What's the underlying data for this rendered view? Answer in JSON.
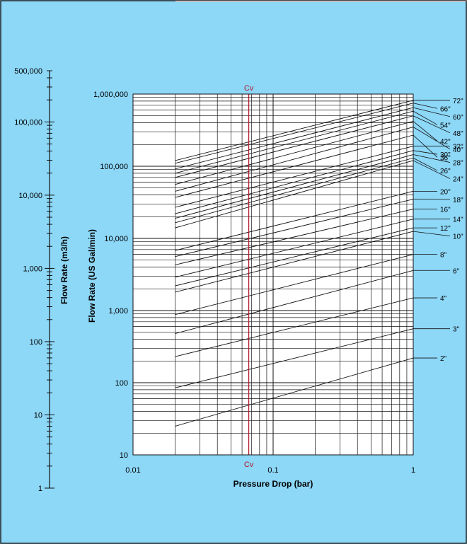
{
  "colors": {
    "background": "#8dd7f7",
    "border": "#222222",
    "grid": "#111111",
    "chart_area": "#ffffff",
    "cv_line": "#b0182a"
  },
  "chart_data": {
    "type": "line",
    "title": "",
    "xlabel": "Pressure Drop (bar)",
    "ylabel": "Flow Rate (US Gal/min)",
    "y2label": "Flow Rate (m3/h)",
    "xscale": "log",
    "yscale": "log",
    "xlim": [
      0.01,
      1
    ],
    "ylim": [
      10,
      1000000
    ],
    "x_ticks": [
      "0.01",
      "0.1",
      "1"
    ],
    "y_ticks": [
      "10",
      "100",
      "1,000",
      "10,000",
      "100,000",
      "1,000,000"
    ],
    "secondary_axis": {
      "label": "Flow Rate (m3/h)",
      "scale": "log",
      "range": [
        1,
        500000
      ],
      "ticks": [
        "1",
        "10",
        "100",
        "1,000",
        "10,000",
        "100,000",
        "500,000"
      ]
    },
    "reference_line": {
      "label": "Cv",
      "x": 0.067
    },
    "grid": true,
    "series_x_range": [
      0.02,
      1
    ],
    "series": [
      {
        "name": "2\"",
        "values_at_x": {
          "0.02": 25,
          "1": 220
        }
      },
      {
        "name": "3\"",
        "values_at_x": {
          "0.02": 85,
          "1": 560
        }
      },
      {
        "name": "4\"",
        "values_at_x": {
          "0.02": 230,
          "1": 1500
        }
      },
      {
        "name": "6\"",
        "values_at_x": {
          "0.02": 480,
          "1": 3600
        }
      },
      {
        "name": "8\"",
        "values_at_x": {
          "0.02": 880,
          "1": 6000
        }
      },
      {
        "name": "10\"",
        "values_at_x": {
          "0.02": 1800,
          "1": 12500
        }
      },
      {
        "name": "12\"",
        "values_at_x": {
          "0.02": 2200,
          "1": 14000
        }
      },
      {
        "name": "14\"",
        "values_at_x": {
          "0.02": 2900,
          "1": 18500
        }
      },
      {
        "name": "16\"",
        "values_at_x": {
          "0.02": 4300,
          "1": 25500
        }
      },
      {
        "name": "18\"",
        "values_at_x": {
          "0.02": 5600,
          "1": 35000
        }
      },
      {
        "name": "20\"",
        "values_at_x": {
          "0.02": 6800,
          "1": 45000
        }
      },
      {
        "name": "24\"",
        "values_at_x": {
          "0.02": 14000,
          "1": 120000
        }
      },
      {
        "name": "26\"",
        "values_at_x": {
          "0.02": 16500,
          "1": 130000
        }
      },
      {
        "name": "28\"",
        "values_at_x": {
          "0.02": 19000,
          "1": 145000
        }
      },
      {
        "name": "30\"",
        "values_at_x": {
          "0.02": 22000,
          "1": 165000
        }
      },
      {
        "name": "32\"",
        "values_at_x": {
          "0.02": 27000,
          "1": 190000
        }
      },
      {
        "name": "36\"",
        "values_at_x": {
          "0.02": 37000,
          "1": 270000
        }
      },
      {
        "name": "40\"",
        "values_at_x": {
          "0.02": 45000,
          "1": 350000
        }
      },
      {
        "name": "42\"",
        "values_at_x": {
          "0.02": 56000,
          "1": 420000
        }
      },
      {
        "name": "48\"",
        "values_at_x": {
          "0.02": 70000,
          "1": 500000
        }
      },
      {
        "name": "54\"",
        "values_at_x": {
          "0.02": 80000,
          "1": 580000
        }
      },
      {
        "name": "60\"",
        "values_at_x": {
          "0.02": 92000,
          "1": 650000
        }
      },
      {
        "name": "66\"",
        "values_at_x": {
          "0.02": 110000,
          "1": 750000
        }
      },
      {
        "name": "72\"",
        "values_at_x": {
          "0.02": 120000,
          "1": 820000
        }
      }
    ]
  }
}
